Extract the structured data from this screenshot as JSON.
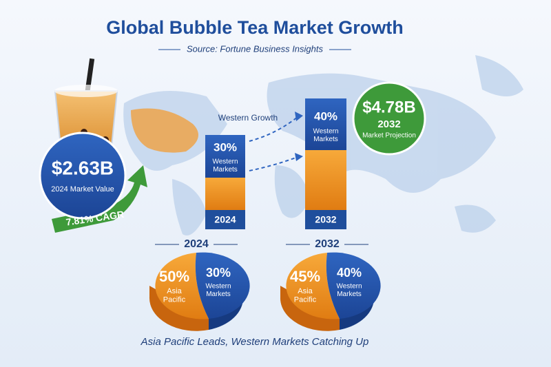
{
  "header": {
    "title": "Global Bubble Tea Market Growth",
    "subtitle": "Source: Fortune Business Insights"
  },
  "current": {
    "value": "$2.63B",
    "label": "2024 Market Value",
    "cagr": "7.81% CAGR"
  },
  "projection": {
    "value": "$4.78B",
    "year": "2032",
    "label": "Market Projection"
  },
  "growth_label": "Western Growth",
  "bars": [
    {
      "share": "30%",
      "region": "Western Markets",
      "year": "2024"
    },
    {
      "share": "40%",
      "region": "Western Markets",
      "year": "2032"
    }
  ],
  "pies": [
    {
      "year": "2024",
      "asia_share": "50%",
      "asia_label": "Asia Pacific",
      "west_share": "30%",
      "west_label": "Western Markets"
    },
    {
      "year": "2032",
      "asia_share": "45%",
      "asia_label": "Asia Pacific",
      "west_share": "40%",
      "west_label": "Western Markets"
    }
  ],
  "footer": "Asia Pacific Leads, Western Markets Catching Up"
}
